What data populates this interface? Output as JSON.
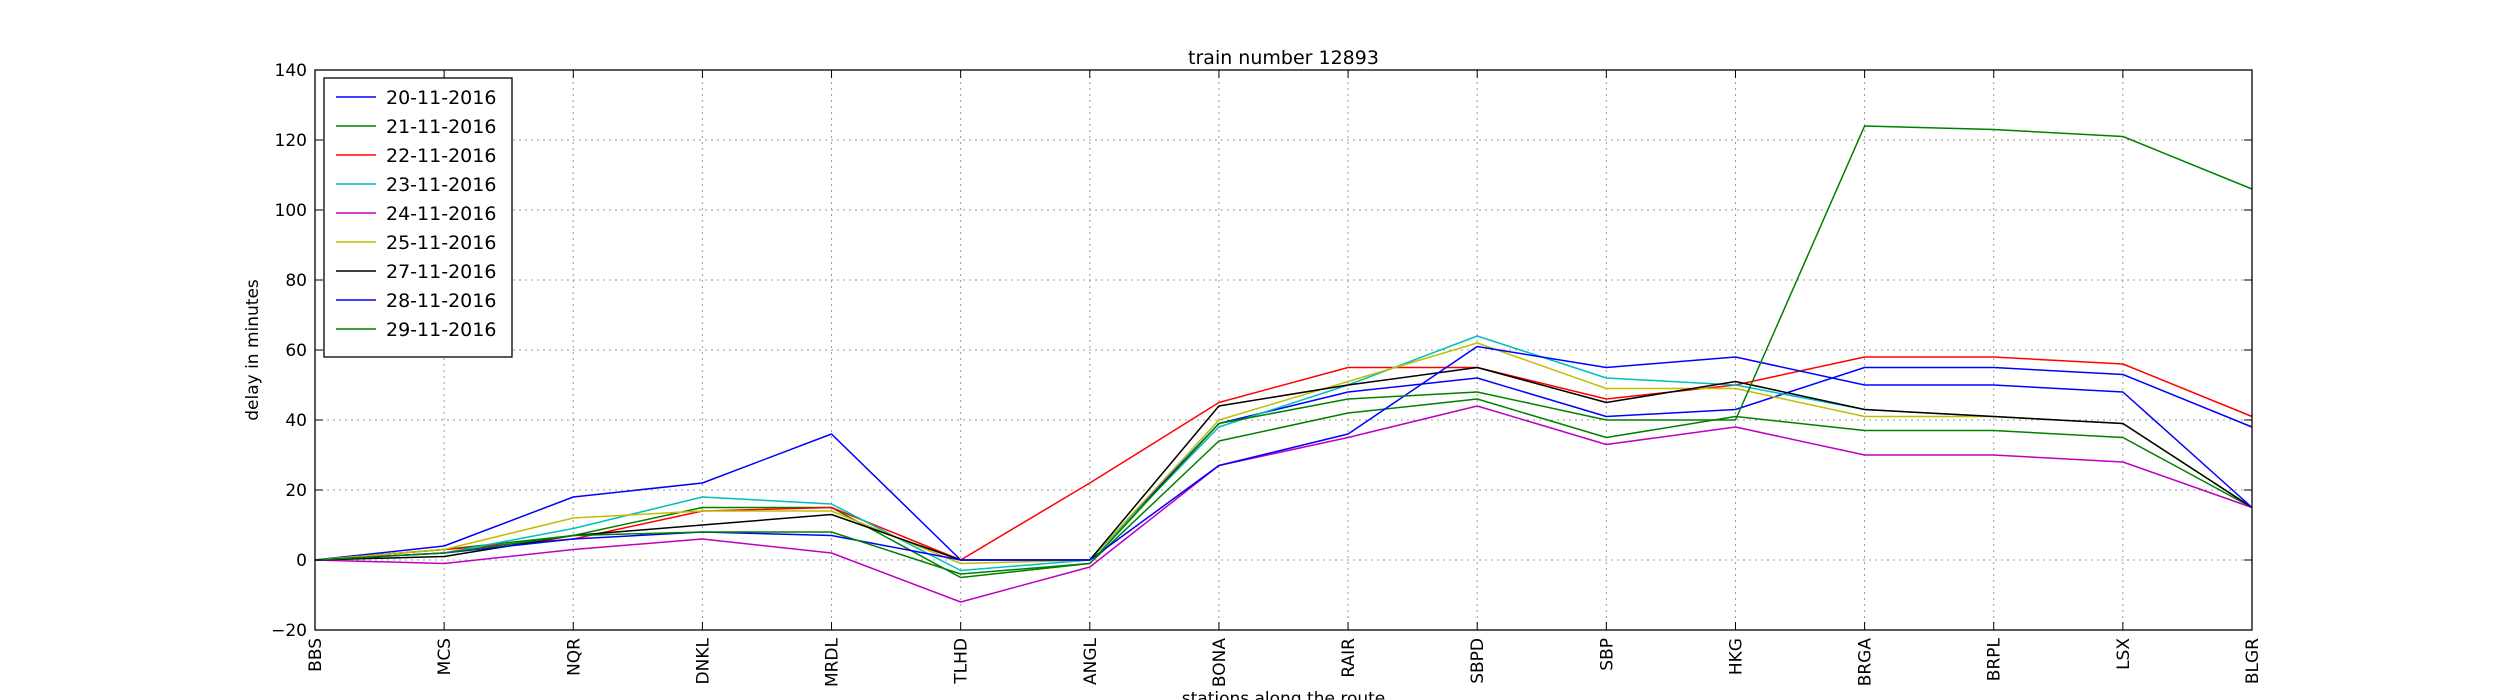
{
  "chart_data": {
    "type": "line",
    "title": "train number 12893",
    "xlabel": "stations along the route",
    "ylabel": "delay in minutes",
    "ylim": [
      -20,
      140
    ],
    "yticks": [
      -20,
      0,
      20,
      40,
      60,
      80,
      100,
      120,
      140
    ],
    "grid": true,
    "legend_position": "top-left",
    "categories": [
      "BBS",
      "MCS",
      "NQR",
      "DNKL",
      "MRDL",
      "TLHD",
      "ANGL",
      "BONA",
      "RAIR",
      "SBPD",
      "SBP",
      "HKG",
      "BRGA",
      "BRPL",
      "LSX",
      "BLGR"
    ],
    "series": [
      {
        "name": "20-11-2016",
        "color": "#0000ff",
        "values": [
          0,
          4,
          18,
          22,
          36,
          0,
          0,
          39,
          48,
          52,
          41,
          43,
          55,
          55,
          53,
          38
        ]
      },
      {
        "name": "21-11-2016",
        "color": "#008000",
        "values": [
          0,
          3,
          7,
          15,
          15,
          -5,
          -1,
          34,
          42,
          46,
          35,
          41,
          37,
          37,
          35,
          15
        ]
      },
      {
        "name": "22-11-2016",
        "color": "#ff0000",
        "values": [
          0,
          3,
          6,
          14,
          15,
          0,
          22,
          45,
          55,
          55,
          46,
          50,
          58,
          58,
          56,
          41
        ]
      },
      {
        "name": "23-11-2016",
        "color": "#00bfbf",
        "values": [
          0,
          2,
          9,
          18,
          16,
          -3,
          0,
          38,
          50,
          64,
          52,
          50,
          43,
          41,
          39,
          15
        ]
      },
      {
        "name": "24-11-2016",
        "color": "#bf00bf",
        "values": [
          0,
          -1,
          3,
          6,
          2,
          -12,
          -2,
          27,
          35,
          44,
          33,
          38,
          30,
          30,
          28,
          15
        ]
      },
      {
        "name": "25-11-2016",
        "color": "#bfbf00",
        "values": [
          0,
          3,
          12,
          14,
          14,
          -1,
          0,
          40,
          51,
          62,
          49,
          49,
          41,
          41,
          39,
          15
        ]
      },
      {
        "name": "27-11-2016",
        "color": "#000000",
        "values": [
          0,
          1,
          7,
          10,
          13,
          0,
          0,
          44,
          50,
          55,
          45,
          51,
          43,
          41,
          39,
          15
        ]
      },
      {
        "name": "28-11-2016",
        "color": "#0000ff",
        "values": [
          0,
          2,
          6,
          8,
          7,
          0,
          0,
          27,
          36,
          61,
          55,
          58,
          50,
          50,
          48,
          15
        ]
      },
      {
        "name": "29-11-2016",
        "color": "#008000",
        "values": [
          0,
          2,
          7,
          8,
          8,
          -4,
          -1,
          39,
          46,
          48,
          40,
          40,
          124,
          123,
          121,
          106
        ]
      }
    ]
  }
}
